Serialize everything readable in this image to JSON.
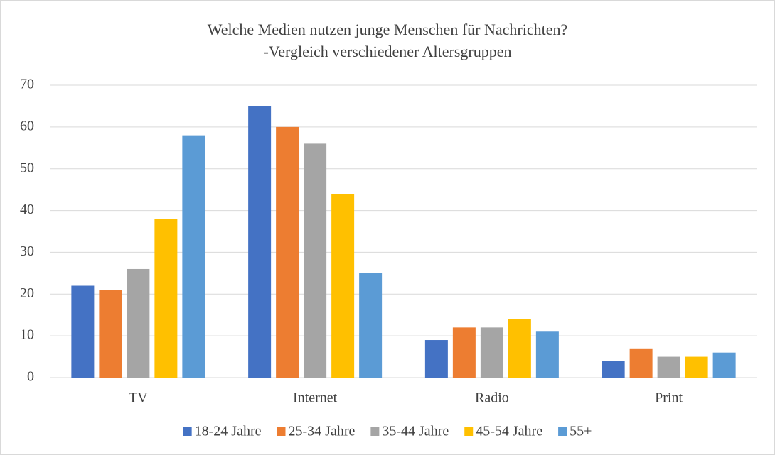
{
  "chart_data": {
    "type": "bar",
    "title": "Welche Medien nutzen junge Menschen für Nachrichten?",
    "subtitle": "-Vergleich verschiedener Altersgruppen",
    "categories": [
      "TV",
      "Internet",
      "Radio",
      "Print"
    ],
    "series": [
      {
        "name": "18-24 Jahre",
        "color": "#4472c4",
        "values": [
          22,
          65,
          9,
          4
        ]
      },
      {
        "name": "25-34 Jahre",
        "color": "#ed7d31",
        "values": [
          21,
          60,
          12,
          7
        ]
      },
      {
        "name": "35-44 Jahre",
        "color": "#a5a5a5",
        "values": [
          26,
          56,
          12,
          5
        ]
      },
      {
        "name": "45-54 Jahre",
        "color": "#ffc000",
        "values": [
          38,
          44,
          14,
          5
        ]
      },
      {
        "name": "55+",
        "color": "#5b9bd5",
        "values": [
          58,
          25,
          11,
          6
        ]
      }
    ],
    "ylim": [
      0,
      70
    ],
    "yticks": [
      0,
      10,
      20,
      30,
      40,
      50,
      60,
      70
    ],
    "grid": true,
    "legend": "bottom"
  }
}
